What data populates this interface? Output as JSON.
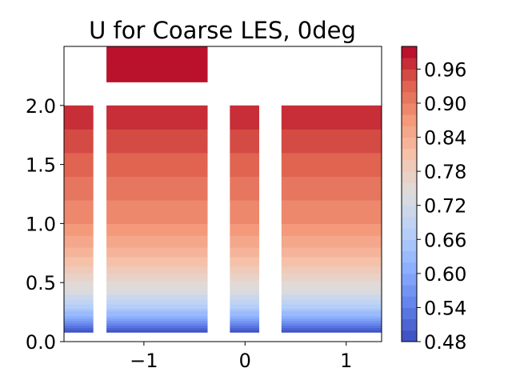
{
  "chart_data": {
    "type": "heatmap",
    "title": "U for Coarse LES, 0deg",
    "xlabel": "",
    "ylabel": "",
    "xlim": [
      -1.79,
      1.35
    ],
    "ylim": [
      0.0,
      2.5
    ],
    "x_ticks": [
      -1,
      0,
      1
    ],
    "x_tick_labels": [
      "−1",
      "0",
      "1"
    ],
    "y_ticks": [
      0.0,
      0.5,
      1.0,
      1.5,
      2.0
    ],
    "y_tick_labels": [
      "0.0",
      "0.5",
      "1.0",
      "1.5",
      "2.0"
    ],
    "colormap": "coolwarm",
    "color_range": [
      0.48,
      1.0
    ],
    "colorbar_levels": [
      0.48,
      0.5,
      0.52,
      0.54,
      0.56,
      0.58,
      0.6,
      0.62,
      0.64,
      0.66,
      0.68,
      0.7,
      0.72,
      0.74,
      0.76,
      0.78,
      0.8,
      0.82,
      0.84,
      0.86,
      0.88,
      0.9,
      0.92,
      0.94,
      0.96,
      0.98,
      1.0
    ],
    "colorbar_ticks": [
      0.48,
      0.54,
      0.6,
      0.66,
      0.72,
      0.78,
      0.84,
      0.9,
      0.96
    ],
    "colorbar_tick_labels": [
      "0.48",
      "0.54",
      "0.60",
      "0.66",
      "0.72",
      "0.78",
      "0.84",
      "0.90",
      "0.96"
    ],
    "grid": false,
    "regions": [
      {
        "x": [
          -1.79,
          -1.5
        ],
        "y": [
          0.08,
          2.0
        ]
      },
      {
        "x": [
          -1.37,
          -0.37
        ],
        "y": [
          0.08,
          2.0
        ]
      },
      {
        "x": [
          -1.37,
          -0.37
        ],
        "y": [
          2.2,
          2.5
        ]
      },
      {
        "x": [
          -0.15,
          0.14
        ],
        "y": [
          0.08,
          2.0
        ]
      },
      {
        "x": [
          0.36,
          1.35
        ],
        "y": [
          0.08,
          2.0
        ]
      }
    ],
    "profile": {
      "y": [
        0.08,
        0.15,
        0.25,
        0.35,
        0.45,
        0.55,
        0.65,
        0.75,
        0.85,
        1.0,
        1.2,
        1.4,
        1.6,
        1.8,
        2.0,
        2.2,
        2.5
      ],
      "u": [
        0.49,
        0.55,
        0.64,
        0.7,
        0.74,
        0.77,
        0.8,
        0.83,
        0.85,
        0.88,
        0.9,
        0.92,
        0.94,
        0.96,
        0.98,
        0.99,
        0.99
      ]
    }
  }
}
